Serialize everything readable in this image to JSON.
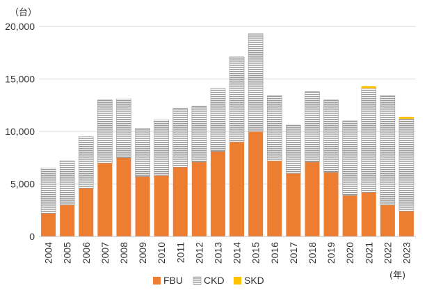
{
  "chart_data": {
    "type": "bar",
    "stacked": true,
    "y_unit": "（台）",
    "x_unit": "(年)",
    "ylim": [
      0,
      20000
    ],
    "y_ticks": [
      "0",
      "5,000",
      "10,000",
      "15,000",
      "20,000"
    ],
    "y_tick_values": [
      0,
      5000,
      10000,
      15000,
      20000
    ],
    "grid": true,
    "legend_position": "bottom",
    "categories": [
      "2004",
      "2005",
      "2006",
      "2007",
      "2008",
      "2009",
      "2010",
      "2011",
      "2012",
      "2013",
      "2014",
      "2015",
      "2016",
      "2017",
      "2018",
      "2019",
      "2020",
      "2021",
      "2022",
      "2023"
    ],
    "series": [
      {
        "name": "FBU",
        "color": "#ED7D31",
        "values": [
          2200,
          3000,
          4600,
          7000,
          7500,
          5700,
          5800,
          6600,
          7100,
          8100,
          9000,
          10000,
          7200,
          6000,
          7100,
          6100,
          3900,
          4200,
          3000,
          2400
        ]
      },
      {
        "name": "CKD",
        "color": "#A5A5A5",
        "values": [
          4300,
          4200,
          4900,
          6000,
          5600,
          4600,
          5300,
          5600,
          5300,
          6000,
          8100,
          9300,
          6200,
          4600,
          6700,
          6900,
          7100,
          9900,
          10400,
          8800
        ]
      },
      {
        "name": "SKD",
        "color": "#FFC000",
        "values": [
          0,
          0,
          0,
          0,
          0,
          0,
          0,
          0,
          0,
          0,
          0,
          0,
          0,
          0,
          0,
          0,
          0,
          200,
          0,
          200
        ]
      }
    ]
  }
}
